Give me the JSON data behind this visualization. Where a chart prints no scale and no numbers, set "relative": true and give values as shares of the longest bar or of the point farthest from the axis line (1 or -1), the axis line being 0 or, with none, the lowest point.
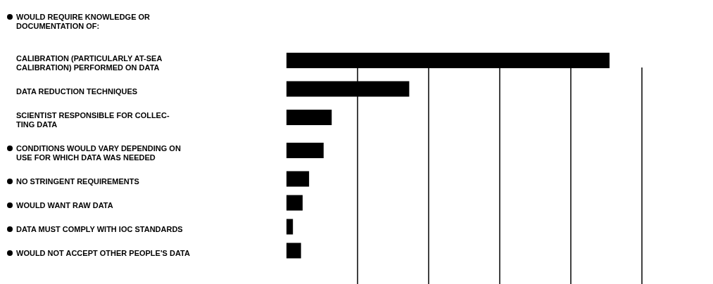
{
  "chart_data": {
    "type": "bar",
    "orientation": "horizontal",
    "relative": true,
    "grid": "x",
    "annotations": [
      "WOULD REQUIRE KNOWLEDGE OR DOCUMENTATION OF:"
    ],
    "categories": [
      "CALIBRATION (PARTICULARLY AT-SEA CALIBRATION) PERFORMED ON DATA",
      "DATA REDUCTION TECHNIQUES",
      "SCIENTIST RESPONSIBLE FOR COLLEC-TING DATA",
      "CONDITIONS WOULD VARY DEPENDING ON USE FOR WHICH DATA WAS NEEDED",
      "NO STRINGENT REQUIREMENTS",
      "WOULD WANT RAW DATA",
      "DATA MUST COMPLY WITH IOC STANDARDS",
      "WOULD NOT ACCEPT OTHER PEOPLE'S DATA"
    ],
    "values": [
      1,
      0.38,
      0.14,
      0.115,
      0.07,
      0.05,
      0.02,
      0.045
    ],
    "color": "#000000"
  }
}
